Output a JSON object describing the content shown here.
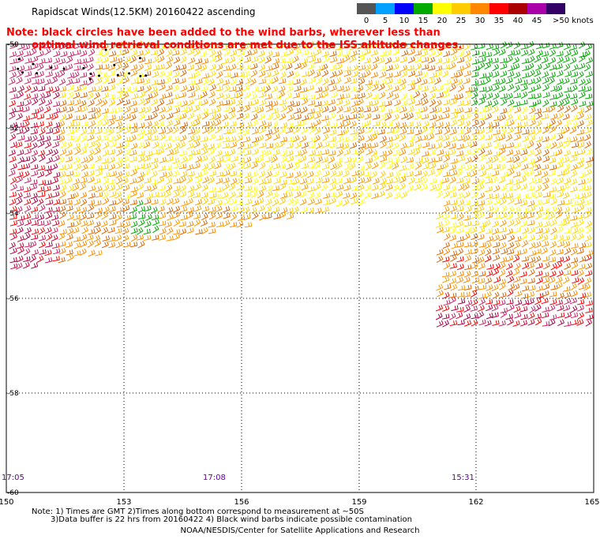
{
  "title": "Rapidscat Winds(12.5KM) 20160422 ascending",
  "note_line1": "Note: black circles have been added to the wind barbs, wherever less than",
  "note_line2": "optimal wind retrieval conditions are met due to the ISS altitude changes.",
  "colorbar": {
    "labels": [
      "0",
      "5",
      "10",
      "15",
      "20",
      "25",
      "30",
      "35",
      "40",
      "45",
      ">50 knots"
    ],
    "colors": [
      "#555555",
      "#00a0ff",
      "#0000ff",
      "#00aa00",
      "#ffff00",
      "#ffcc00",
      "#ff8800",
      "#ff0000",
      "#aa0000",
      "#aa00aa",
      "#330066"
    ]
  },
  "lat_labels": [
    "-50",
    "-52",
    "-54",
    "-56",
    "-58",
    "-60"
  ],
  "lon_labels": [
    "150",
    "153",
    "156",
    "159",
    "162",
    "165"
  ],
  "time_labels": [
    "17:05",
    "17:08",
    "15:31"
  ],
  "bottom_note_line1": "Note: 1) Times are GMT 2)Times along bottom correspond to measurement at ~50S",
  "bottom_note_line2": "3)Data buffer is 22 hrs from 20160422 4) Black wind barbs indicate possible contamination",
  "credit": "NOAA/NESDIS/Center for Satellite Applications and Research"
}
